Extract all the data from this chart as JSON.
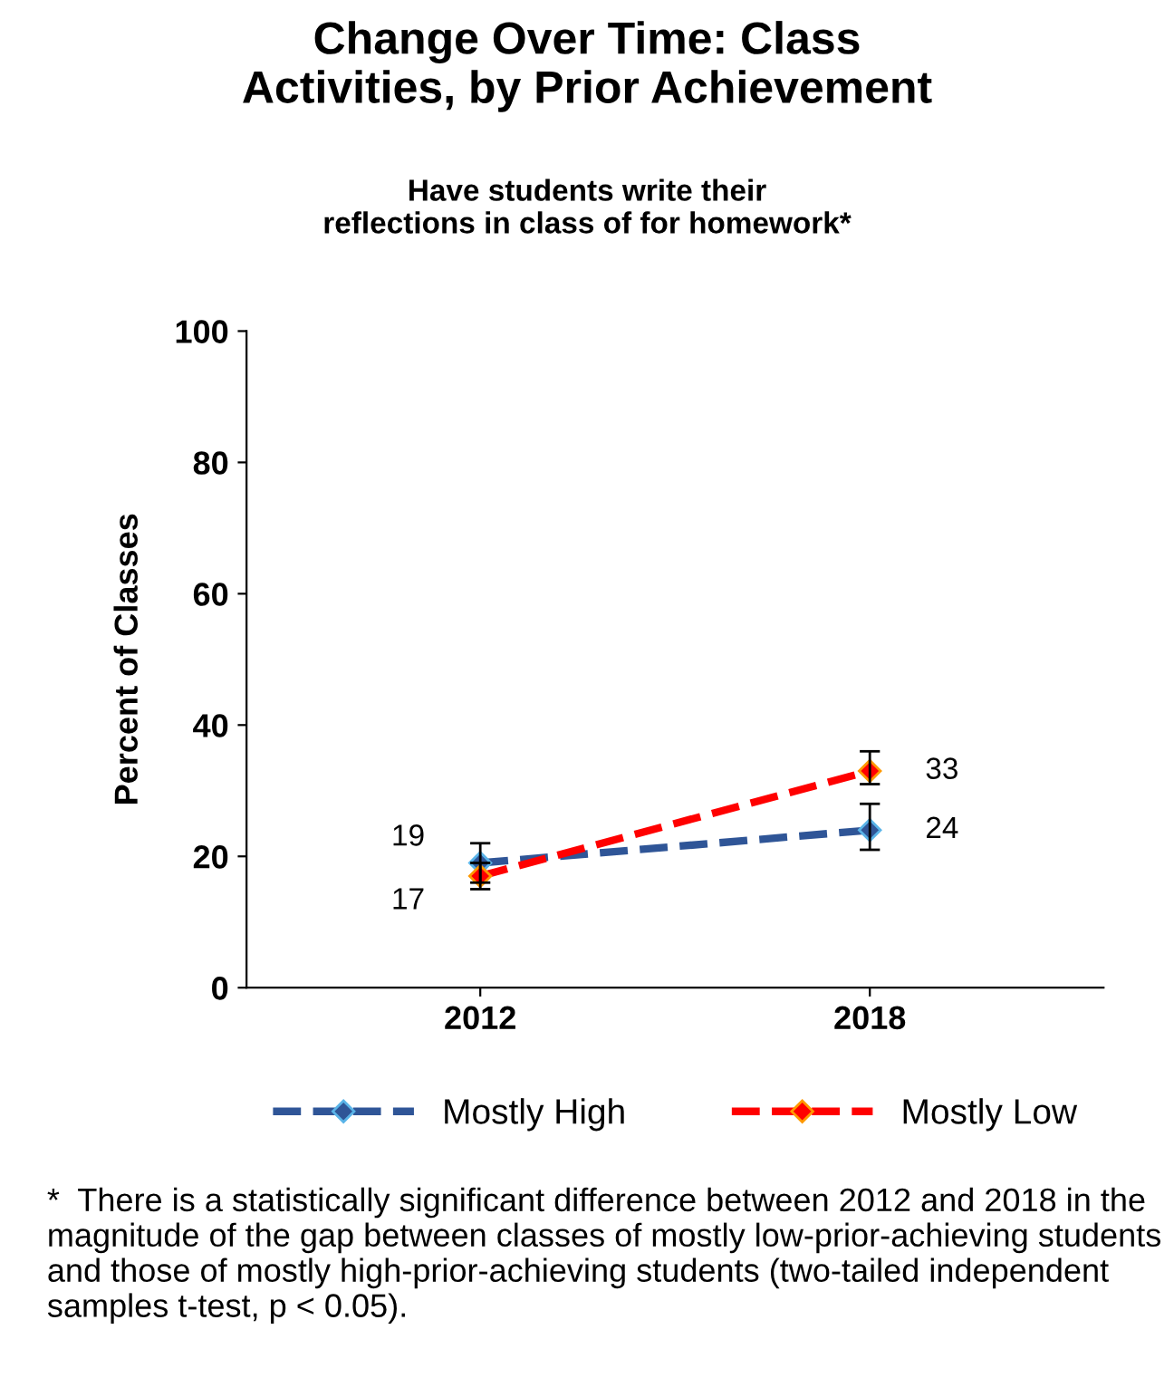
{
  "chart_data": {
    "type": "line",
    "title": "Change Over Time: Class\nActivities, by Prior Achievement",
    "subtitle": "Have students write their\nreflections in class of for homework*",
    "ylabel": "Percent of Classes",
    "categories": [
      "2012",
      "2018"
    ],
    "series": [
      {
        "name": "Mostly High",
        "color": "#2f5597",
        "values": [
          19,
          24
        ],
        "errors": [
          [
            16,
            22
          ],
          [
            21,
            28
          ]
        ]
      },
      {
        "name": "Mostly Low",
        "color": "#ff0000",
        "values": [
          17,
          33
        ],
        "errors": [
          [
            15,
            19
          ],
          [
            31,
            36
          ]
        ]
      }
    ],
    "ylim": [
      0,
      100
    ],
    "yticks": [
      0,
      20,
      40,
      60,
      80,
      100
    ],
    "grid": false,
    "legend": "bottom",
    "marker": "diamond",
    "line_style": "dashed",
    "data_labels": true,
    "annotations": [
      "*  There is a statistically significant difference between 2012 and 2018 in the magnitude of the gap between classes of mostly low-prior-achieving students and those of mostly high-prior-achieving students (two-tailed independent samples t-test, p < 0.05)."
    ]
  }
}
